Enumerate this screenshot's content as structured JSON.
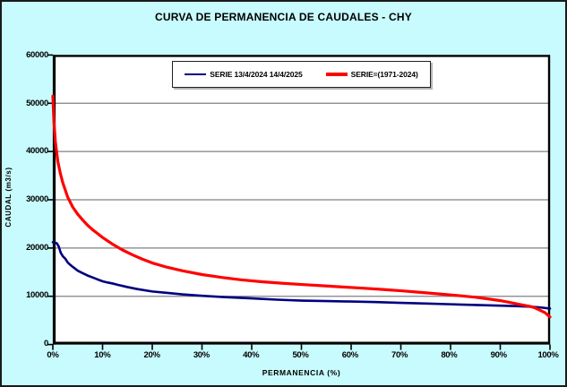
{
  "window": {
    "title": "CURVA DE PERMANENCIA DE CAUDALES - CHY"
  },
  "theme": {
    "background": "#C8FBFD",
    "plot_background": "#FFFFFF",
    "gridline": "#808080",
    "axis": "#000000",
    "series_blue": "#000080",
    "series_red": "#FF0000"
  },
  "chart_data": {
    "type": "line",
    "title": "CURVA DE PERMANENCIA DE CAUDALES - CHY",
    "xlabel": "PERMANENCIA (%)",
    "ylabel": "CAUDAL (m3/s)",
    "xlim": [
      0,
      100
    ],
    "ylim": [
      0,
      60000
    ],
    "grid": "horizontal",
    "legend_position": "top-center-inside",
    "x_ticks": [
      "0%",
      "10%",
      "20%",
      "30%",
      "40%",
      "50%",
      "60%",
      "70%",
      "80%",
      "90%",
      "100%"
    ],
    "x_tick_values": [
      0,
      10,
      20,
      30,
      40,
      50,
      60,
      70,
      80,
      90,
      100
    ],
    "y_ticks": [
      "0",
      "10000",
      "20000",
      "30000",
      "40000",
      "50000",
      "60000"
    ],
    "y_tick_values": [
      0,
      10000,
      20000,
      30000,
      40000,
      50000,
      60000
    ],
    "series": [
      {
        "name": "SERIE 13/4/2024 14/4/2025",
        "color": "#000080",
        "line_width": 2.6,
        "x": [
          0,
          0.8,
          1.2,
          1.6,
          2,
          2.5,
          3,
          3.5,
          4,
          4.5,
          5,
          6,
          7,
          8,
          9,
          10,
          11,
          12,
          13,
          15,
          17,
          20,
          23,
          26,
          30,
          35,
          40,
          45,
          50,
          55,
          60,
          65,
          70,
          75,
          80,
          85,
          90,
          93,
          96,
          98,
          100
        ],
        "y": [
          21200,
          21000,
          20300,
          19000,
          18300,
          17800,
          17000,
          16500,
          16100,
          15700,
          15300,
          14800,
          14300,
          13900,
          13500,
          13100,
          12850,
          12650,
          12400,
          11900,
          11500,
          11000,
          10700,
          10400,
          10100,
          9800,
          9550,
          9300,
          9100,
          9000,
          8900,
          8800,
          8650,
          8500,
          8350,
          8200,
          8050,
          7950,
          7850,
          7700,
          7450
        ]
      },
      {
        "name": "SERIE=(1971-2024)",
        "color": "#FF0000",
        "line_width": 3.2,
        "x": [
          0,
          0.2,
          0.5,
          1,
          1.5,
          2,
          3,
          4,
          5,
          6,
          7,
          8,
          9,
          10,
          12,
          14,
          16,
          18,
          20,
          23,
          26,
          30,
          34,
          38,
          42,
          46,
          50,
          54,
          58,
          62,
          66,
          70,
          74,
          78,
          82,
          85,
          88,
          90,
          92,
          94,
          96,
          97,
          98,
          99,
          100
        ],
        "y": [
          51500,
          46500,
          42000,
          38000,
          35500,
          33500,
          30500,
          28500,
          27000,
          25800,
          24700,
          23800,
          23000,
          22200,
          20800,
          19600,
          18600,
          17700,
          16900,
          16000,
          15300,
          14500,
          13900,
          13400,
          13000,
          12700,
          12450,
          12200,
          11950,
          11700,
          11450,
          11150,
          10800,
          10450,
          10100,
          9800,
          9400,
          9100,
          8700,
          8300,
          7900,
          7600,
          7100,
          6600,
          5700
        ]
      }
    ]
  }
}
